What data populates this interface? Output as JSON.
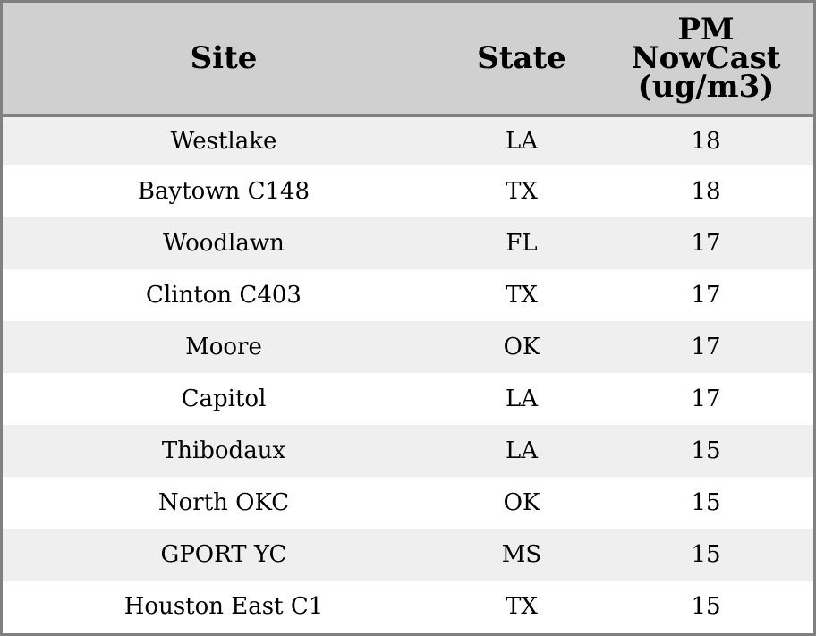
{
  "chart_data": {
    "type": "table",
    "columns": [
      "Site",
      "State",
      "PM\nNowCast\n(ug/m3)"
    ],
    "rows": [
      [
        "Westlake",
        "LA",
        "18"
      ],
      [
        "Baytown C148",
        "TX",
        "18"
      ],
      [
        "Woodlawn",
        "FL",
        "17"
      ],
      [
        "Clinton C403",
        "TX",
        "17"
      ],
      [
        "Moore",
        "OK",
        "17"
      ],
      [
        "Capitol",
        "LA",
        "17"
      ],
      [
        "Thibodaux",
        "LA",
        "15"
      ],
      [
        "North OKC",
        "OK",
        "15"
      ],
      [
        "GPORT YC",
        "MS",
        "15"
      ],
      [
        "Houston East C1",
        "TX",
        "15"
      ]
    ]
  },
  "table": {
    "header": {
      "site": "Site",
      "state": "State",
      "pm_lines": [
        "PM",
        "NowCast",
        "(ug/m3)"
      ]
    }
  },
  "colors": {
    "header_bg": "#d0d0d0",
    "stripe_bg": "#efefef",
    "border": "#808080"
  }
}
